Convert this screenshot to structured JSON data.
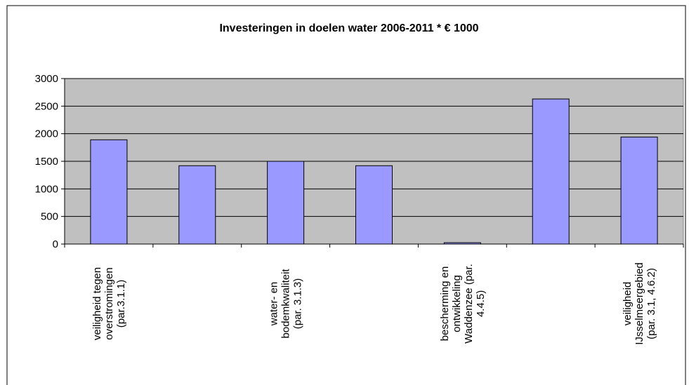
{
  "chart_data": {
    "type": "bar",
    "title": "Investeringen in doelen water 2006-2011 * € 1000",
    "categories": [
      "veiligheid tegen\noverstromingen\n(par.3.1.1)",
      null,
      "water- en\nbodemkwaliteit\n(par. 3.1.3)",
      null,
      "bescherming en\nontwikkeling\nWaddenzee (par.\n4.4.5)",
      null,
      "veiligheid\nIJsselmeergebied\n(par. 3.1, 4.6.2)"
    ],
    "values": [
      1890,
      1420,
      1500,
      1420,
      25,
      2630,
      1940
    ],
    "color": "#9999ff",
    "ylim": [
      0,
      3000
    ],
    "yticks": [
      0,
      500,
      1000,
      1500,
      2000,
      2500,
      3000
    ],
    "grid": true
  }
}
